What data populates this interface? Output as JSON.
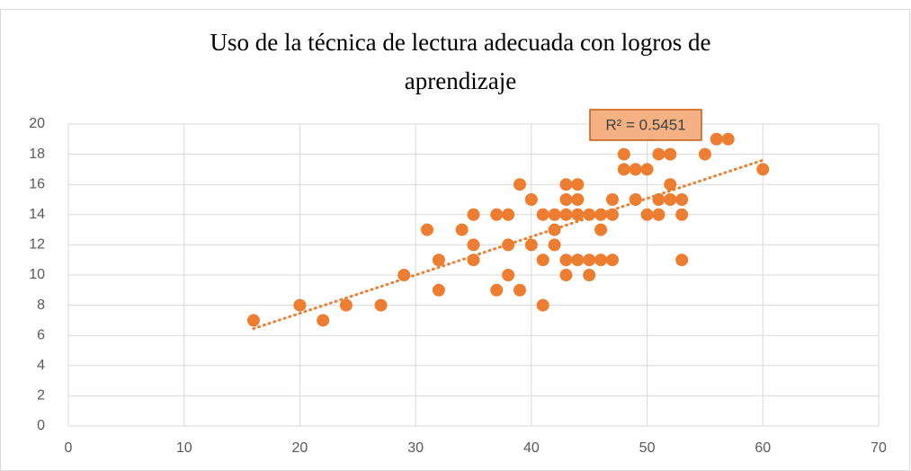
{
  "chart_data": {
    "type": "scatter",
    "title": [
      "Uso de la técnica de lectura adecuada con logros de",
      "aprendizaje"
    ],
    "annotation": "R² = 0.5451",
    "trendline": "linear",
    "color": "#ed7d31",
    "grid": true,
    "x": [
      16,
      20,
      22,
      24,
      27,
      29,
      31,
      32,
      32,
      34,
      35,
      35,
      35,
      37,
      37,
      38,
      38,
      38,
      39,
      39,
      40,
      40,
      41,
      41,
      41,
      42,
      42,
      42,
      43,
      43,
      43,
      43,
      43,
      44,
      44,
      44,
      44,
      45,
      45,
      45,
      46,
      46,
      46,
      47,
      47,
      47,
      48,
      48,
      49,
      49,
      50,
      50,
      51,
      51,
      51,
      52,
      52,
      52,
      53,
      53,
      53,
      55,
      56,
      57,
      60
    ],
    "y": [
      7,
      8,
      7,
      8,
      8,
      10,
      13,
      11,
      9,
      13,
      14,
      12,
      11,
      14,
      9,
      14,
      12,
      10,
      16,
      9,
      15,
      12,
      14,
      11,
      8,
      14,
      13,
      12,
      16,
      15,
      14,
      11,
      10,
      16,
      15,
      14,
      11,
      14,
      11,
      10,
      14,
      13,
      11,
      15,
      14,
      11,
      18,
      17,
      17,
      15,
      17,
      14,
      18,
      15,
      14,
      18,
      16,
      15,
      15,
      14,
      11,
      18,
      19,
      19,
      17
    ],
    "xlim": [
      0,
      70
    ],
    "xticks": [
      0,
      10,
      20,
      30,
      40,
      50,
      60,
      70
    ],
    "ylim": [
      0,
      20
    ],
    "yticks": [
      0,
      2,
      4,
      6,
      8,
      10,
      12,
      14,
      16,
      18,
      20
    ]
  }
}
